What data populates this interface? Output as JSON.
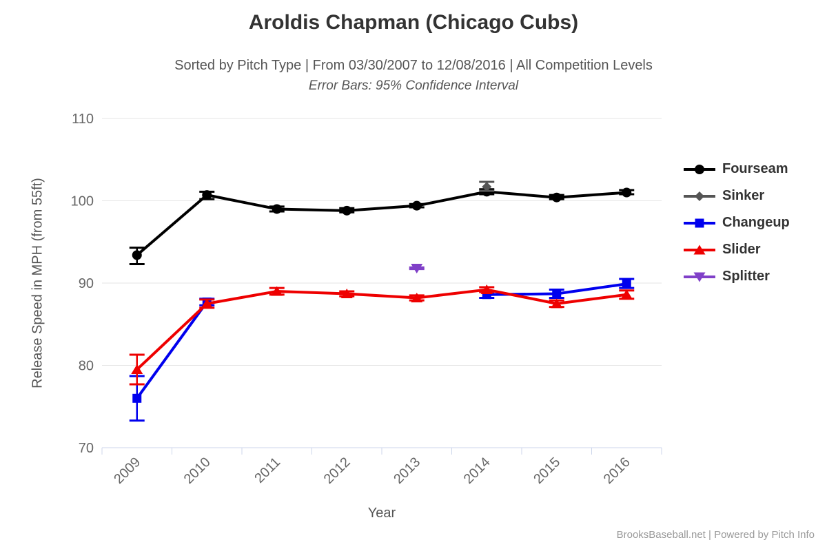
{
  "header": {
    "title": "Aroldis Chapman (Chicago Cubs)",
    "subtitle": "Sorted by Pitch Type | From 03/30/2007 to 12/08/2016 | All Competition Levels",
    "subtitle2": "Error Bars: 95% Confidence Interval"
  },
  "footer": {
    "credit": "BrooksBaseball.net | Powered by Pitch Info"
  },
  "chart_data": {
    "type": "line",
    "title": "Aroldis Chapman (Chicago Cubs)",
    "xlabel": "Year",
    "ylabel": "Release Speed in MPH (from 55ft)",
    "categories": [
      "2009",
      "2010",
      "2011",
      "2012",
      "2013",
      "2014",
      "2015",
      "2016"
    ],
    "ylim": [
      70,
      110
    ],
    "yticks": [
      110,
      100,
      90,
      80,
      70
    ],
    "grid": true,
    "legend_position": "right",
    "error_bars": "95% Confidence Interval",
    "colors": {
      "grid_line": "#e6e6e6",
      "axis_line": "#ccd6eb",
      "tick_label": "#666666",
      "axis_title": "#555555",
      "title_text": "#333333",
      "legend_text": "#333333",
      "footer_text": "#999999"
    },
    "series": [
      {
        "name": "Fourseam",
        "color": "#000000",
        "marker": "circle",
        "points": [
          {
            "year": "2009",
            "value": 93.4,
            "lo": 92.3,
            "hi": 94.3
          },
          {
            "year": "2010",
            "value": 100.7,
            "lo": 100.2,
            "hi": 101.1
          },
          {
            "year": "2011",
            "value": 99.0,
            "lo": 98.7,
            "hi": 99.3
          },
          {
            "year": "2012",
            "value": 98.8,
            "lo": 98.6,
            "hi": 99.1
          },
          {
            "year": "2013",
            "value": 99.4,
            "lo": 99.2,
            "hi": 99.6
          },
          {
            "year": "2014",
            "value": 101.1,
            "lo": 100.8,
            "hi": 101.4
          },
          {
            "year": "2015",
            "value": 100.4,
            "lo": 100.2,
            "hi": 100.7
          },
          {
            "year": "2016",
            "value": 101.0,
            "lo": 100.8,
            "hi": 101.3
          }
        ]
      },
      {
        "name": "Sinker",
        "color": "#555555",
        "marker": "diamond",
        "points": [
          {
            "year": "2014",
            "value": 101.7,
            "lo": 101.2,
            "hi": 102.3
          }
        ]
      },
      {
        "name": "Changeup",
        "color": "#0000ee",
        "marker": "square",
        "points": [
          {
            "year": "2009",
            "value": 76.0,
            "lo": 73.3,
            "hi": 78.7
          },
          {
            "year": "2010",
            "value": 87.7,
            "lo": 87.3,
            "hi": 88.1
          },
          {
            "year": "2014",
            "value": 88.6,
            "lo": 88.2,
            "hi": 89.0
          },
          {
            "year": "2015",
            "value": 88.7,
            "lo": 88.2,
            "hi": 89.2
          },
          {
            "year": "2016",
            "value": 89.9,
            "lo": 89.4,
            "hi": 90.5
          }
        ]
      },
      {
        "name": "Slider",
        "color": "#ee0000",
        "marker": "triangle-up",
        "points": [
          {
            "year": "2009",
            "value": 79.5,
            "lo": 77.7,
            "hi": 81.3
          },
          {
            "year": "2010",
            "value": 87.5,
            "lo": 87.0,
            "hi": 88.0
          },
          {
            "year": "2011",
            "value": 89.0,
            "lo": 88.6,
            "hi": 89.4
          },
          {
            "year": "2012",
            "value": 88.7,
            "lo": 88.4,
            "hi": 89.0
          },
          {
            "year": "2013",
            "value": 88.2,
            "lo": 87.9,
            "hi": 88.5
          },
          {
            "year": "2014",
            "value": 89.2,
            "lo": 88.9,
            "hi": 89.5
          },
          {
            "year": "2015",
            "value": 87.5,
            "lo": 87.1,
            "hi": 87.9
          },
          {
            "year": "2016",
            "value": 88.6,
            "lo": 88.1,
            "hi": 89.1
          }
        ]
      },
      {
        "name": "Splitter",
        "color": "#8040c8",
        "marker": "triangle-down",
        "points": [
          {
            "year": "2013",
            "value": 91.8,
            "lo": 91.7,
            "hi": 91.9
          }
        ]
      }
    ]
  }
}
